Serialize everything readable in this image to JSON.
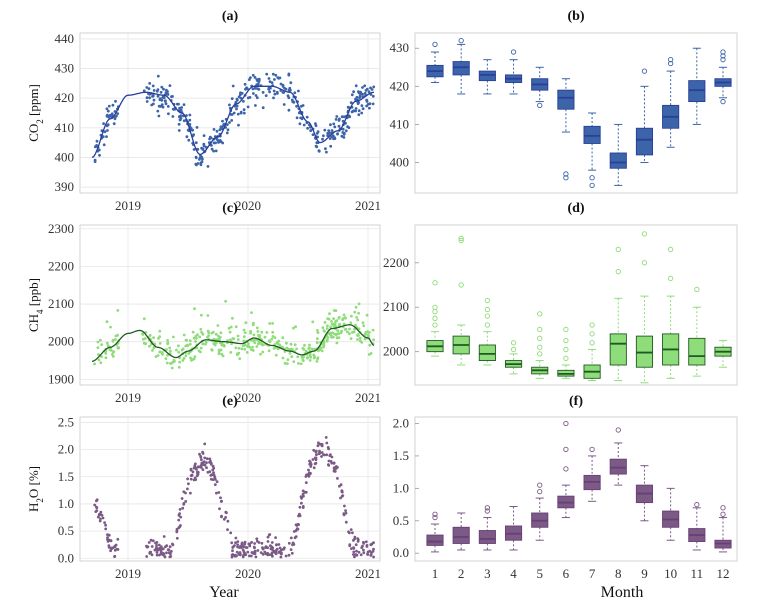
{
  "x_titles": {
    "left": "Year",
    "right": "Month"
  },
  "colors": {
    "co2": "#3c64a8",
    "ch4": "#8fdc7a",
    "h2o": "#7b5a86",
    "co2_line": "#2a3e9a",
    "ch4_line": "#1f5a22",
    "h2o_line": "#6a3f78"
  },
  "chart_data": [
    {
      "type": "scatter",
      "panel": "(a)",
      "ylabel": "CO2 [ppm]",
      "ylabel_main": "CO",
      "ylabel_sub": "2",
      "ylabel_unit": " [ppm]",
      "xlabel": "",
      "xticks": [
        "2019",
        "2020",
        "2021"
      ],
      "xtick_values": [
        2019.0,
        2020.0,
        2021.0
      ],
      "xlim": [
        2018.6,
        2021.1
      ],
      "yticks": [
        390,
        400,
        410,
        420,
        430,
        440
      ],
      "ylim": [
        388,
        442
      ],
      "grid": true,
      "smooth_line": {
        "x": [
          2018.7,
          2018.85,
          2019.0,
          2019.15,
          2019.3,
          2019.45,
          2019.6,
          2019.75,
          2019.9,
          2020.05,
          2020.2,
          2020.35,
          2020.5,
          2020.6,
          2020.75,
          2020.9,
          2021.05
        ],
        "y": [
          400,
          413,
          421,
          422,
          421,
          415,
          401,
          407,
          418,
          424,
          424,
          422,
          412,
          405,
          409,
          419,
          422
        ]
      }
    },
    {
      "type": "box",
      "panel": "(b)",
      "categories": [
        "1",
        "2",
        "3",
        "4",
        "5",
        "6",
        "7",
        "8",
        "9",
        "10",
        "11",
        "12"
      ],
      "yticks": [
        400,
        410,
        420,
        430
      ],
      "ylim": [
        392,
        434
      ],
      "grid": false,
      "boxes": [
        {
          "min": 421,
          "q1": 422.5,
          "median": 424,
          "q3": 425.5,
          "max": 429,
          "outliers": [
            431
          ]
        },
        {
          "min": 418,
          "q1": 423,
          "median": 425,
          "q3": 426.5,
          "max": 431,
          "outliers": [
            432
          ]
        },
        {
          "min": 418,
          "q1": 421.5,
          "median": 423,
          "q3": 424,
          "max": 427,
          "outliers": []
        },
        {
          "min": 418,
          "q1": 421,
          "median": 422,
          "q3": 423,
          "max": 427,
          "outliers": [
            429
          ]
        },
        {
          "min": 416,
          "q1": 419,
          "median": 420.5,
          "q3": 422,
          "max": 425,
          "outliers": [
            415
          ]
        },
        {
          "min": 408,
          "q1": 414,
          "median": 417,
          "q3": 419,
          "max": 422,
          "outliers": [
            397,
            396
          ]
        },
        {
          "min": 398,
          "q1": 405,
          "median": 407,
          "q3": 409.5,
          "max": 413,
          "outliers": [
            396,
            394
          ]
        },
        {
          "min": 394,
          "q1": 398.5,
          "median": 400,
          "q3": 402.5,
          "max": 410,
          "outliers": []
        },
        {
          "min": 400,
          "q1": 402,
          "median": 406,
          "q3": 409,
          "max": 420,
          "outliers": [
            424
          ]
        },
        {
          "min": 404,
          "q1": 409,
          "median": 412,
          "q3": 415,
          "max": 424,
          "outliers": [
            426,
            427
          ]
        },
        {
          "min": 410,
          "q1": 416,
          "median": 419,
          "q3": 421.5,
          "max": 430,
          "outliers": []
        },
        {
          "min": 417,
          "q1": 420,
          "median": 421,
          "q3": 422,
          "max": 425,
          "outliers": [
            427,
            428,
            429,
            416
          ]
        }
      ]
    },
    {
      "type": "scatter",
      "panel": "(c)",
      "ylabel": "CH4 [ppb]",
      "ylabel_main": "CH",
      "ylabel_sub": "4",
      "ylabel_unit": " [ppb]",
      "xticks": [
        "2019",
        "2020",
        "2021"
      ],
      "xtick_values": [
        2019.0,
        2020.0,
        2021.0
      ],
      "xlim": [
        2018.6,
        2021.1
      ],
      "yticks": [
        1900,
        2000,
        2100,
        2200,
        2300
      ],
      "ylim": [
        1885,
        2310
      ],
      "grid": true,
      "smooth_line": {
        "x": [
          2018.7,
          2018.85,
          2019.0,
          2019.1,
          2019.25,
          2019.4,
          2019.5,
          2019.65,
          2019.8,
          2019.95,
          2020.05,
          2020.2,
          2020.35,
          2020.45,
          2020.55,
          2020.7,
          2020.85,
          2021.0,
          2021.05
        ],
        "y": [
          1948,
          1985,
          2022,
          2030,
          1985,
          1958,
          1975,
          2005,
          2000,
          1995,
          2010,
          1990,
          1975,
          1965,
          1975,
          2035,
          2045,
          2010,
          1990
        ]
      }
    },
    {
      "type": "box",
      "panel": "(d)",
      "categories": [
        "1",
        "2",
        "3",
        "4",
        "5",
        "6",
        "7",
        "8",
        "9",
        "10",
        "11",
        "12"
      ],
      "yticks": [
        2000,
        2100,
        2200
      ],
      "ylim": [
        1925,
        2285
      ],
      "grid": false,
      "boxes": [
        {
          "min": 1990,
          "q1": 2000,
          "median": 2012,
          "q3": 2025,
          "max": 2045,
          "outliers": [
            2060,
            2075,
            2090,
            2100,
            2155
          ]
        },
        {
          "min": 1970,
          "q1": 1995,
          "median": 2015,
          "q3": 2035,
          "max": 2060,
          "outliers": [
            2250,
            2255,
            2150
          ]
        },
        {
          "min": 1970,
          "q1": 1980,
          "median": 1995,
          "q3": 2015,
          "max": 2045,
          "outliers": [
            2060,
            2080,
            2095,
            2115
          ]
        },
        {
          "min": 1950,
          "q1": 1965,
          "median": 1972,
          "q3": 1980,
          "max": 1995,
          "outliers": [
            2005,
            2020
          ]
        },
        {
          "min": 1940,
          "q1": 1950,
          "median": 1958,
          "q3": 1965,
          "max": 1980,
          "outliers": [
            1995,
            2010,
            2030,
            2050,
            2085
          ]
        },
        {
          "min": 1940,
          "q1": 1945,
          "median": 1950,
          "q3": 1958,
          "max": 1970,
          "outliers": [
            1985,
            2005,
            2025,
            2050
          ]
        },
        {
          "min": 1935,
          "q1": 1940,
          "median": 1955,
          "q3": 1970,
          "max": 2005,
          "outliers": [
            2020,
            2040,
            2060
          ]
        },
        {
          "min": 1935,
          "q1": 1970,
          "median": 2018,
          "q3": 2040,
          "max": 2120,
          "outliers": [
            2180,
            2230
          ]
        },
        {
          "min": 1930,
          "q1": 1965,
          "median": 1998,
          "q3": 2035,
          "max": 2125,
          "outliers": [
            2200,
            2265
          ]
        },
        {
          "min": 1940,
          "q1": 1970,
          "median": 2005,
          "q3": 2040,
          "max": 2125,
          "outliers": [
            2165,
            2230
          ]
        },
        {
          "min": 1945,
          "q1": 1970,
          "median": 1990,
          "q3": 2030,
          "max": 2100,
          "outliers": [
            2140
          ]
        },
        {
          "min": 1965,
          "q1": 1990,
          "median": 2000,
          "q3": 2010,
          "max": 2025,
          "outliers": []
        }
      ]
    },
    {
      "type": "scatter",
      "panel": "(e)",
      "ylabel": "H2O [%]",
      "ylabel_main": "H",
      "ylabel_sub": "2",
      "ylabel_unit": "O [%]",
      "xticks": [
        "2019",
        "2020",
        "2021"
      ],
      "xtick_values": [
        2019.0,
        2020.0,
        2021.0
      ],
      "xlim": [
        2018.6,
        2021.1
      ],
      "yticks": [
        0.0,
        0.5,
        1.0,
        1.5,
        2.0,
        2.5
      ],
      "ytick_labels": [
        "0.0",
        "0.5",
        "1.0",
        "1.5",
        "2.0",
        "2.5"
      ],
      "ylim": [
        -0.05,
        2.6
      ],
      "grid": true
    },
    {
      "type": "box",
      "panel": "(f)",
      "categories": [
        "1",
        "2",
        "3",
        "4",
        "5",
        "6",
        "7",
        "8",
        "9",
        "10",
        "11",
        "12"
      ],
      "yticks": [
        0.0,
        0.5,
        1.0,
        1.5,
        2.0
      ],
      "ytick_labels": [
        "0.0",
        "0.5",
        "1.0",
        "1.5",
        "2.0"
      ],
      "ylim": [
        -0.12,
        2.1
      ],
      "grid": false,
      "boxes": [
        {
          "min": 0.02,
          "q1": 0.12,
          "median": 0.18,
          "q3": 0.28,
          "max": 0.45,
          "outliers": [
            0.55,
            0.6
          ]
        },
        {
          "min": 0.05,
          "q1": 0.15,
          "median": 0.25,
          "q3": 0.4,
          "max": 0.62,
          "outliers": []
        },
        {
          "min": 0.05,
          "q1": 0.15,
          "median": 0.22,
          "q3": 0.35,
          "max": 0.55,
          "outliers": [
            0.65,
            0.7
          ]
        },
        {
          "min": 0.05,
          "q1": 0.2,
          "median": 0.3,
          "q3": 0.42,
          "max": 0.72,
          "outliers": []
        },
        {
          "min": 0.2,
          "q1": 0.4,
          "median": 0.5,
          "q3": 0.62,
          "max": 0.85,
          "outliers": [
            0.95,
            1.05
          ]
        },
        {
          "min": 0.55,
          "q1": 0.7,
          "median": 0.78,
          "q3": 0.88,
          "max": 1.05,
          "outliers": [
            1.3,
            1.6,
            2.0
          ]
        },
        {
          "min": 0.8,
          "q1": 0.98,
          "median": 1.1,
          "q3": 1.2,
          "max": 1.5,
          "outliers": [
            1.6
          ]
        },
        {
          "min": 1.05,
          "q1": 1.22,
          "median": 1.32,
          "q3": 1.45,
          "max": 1.7,
          "outliers": [
            1.9
          ]
        },
        {
          "min": 0.5,
          "q1": 0.78,
          "median": 0.92,
          "q3": 1.05,
          "max": 1.35,
          "outliers": []
        },
        {
          "min": 0.2,
          "q1": 0.4,
          "median": 0.52,
          "q3": 0.65,
          "max": 1.0,
          "outliers": []
        },
        {
          "min": 0.05,
          "q1": 0.18,
          "median": 0.28,
          "q3": 0.38,
          "max": 0.7,
          "outliers": [
            0.75
          ]
        },
        {
          "min": 0.02,
          "q1": 0.08,
          "median": 0.15,
          "q3": 0.2,
          "max": 0.55,
          "outliers": [
            0.6,
            0.7
          ]
        }
      ]
    }
  ]
}
